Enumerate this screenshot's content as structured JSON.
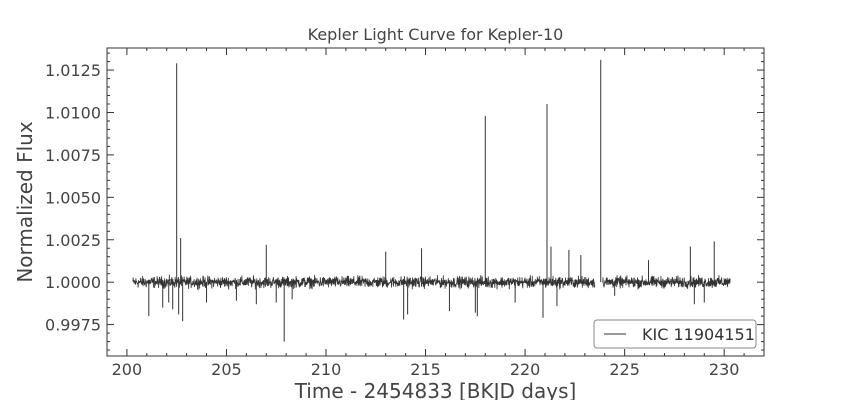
{
  "chart_data": {
    "type": "line",
    "title": "Kepler Light Curve for Kepler-10",
    "xlabel": "Time - 2454833 [BKJD days]",
    "ylabel": "Normalized Flux",
    "xlim": [
      199.0,
      232.0
    ],
    "ylim": [
      0.99565,
      1.0138
    ],
    "xticks": [
      {
        "value": 200,
        "label": "200"
      },
      {
        "value": 205,
        "label": "205"
      },
      {
        "value": 210,
        "label": "210"
      },
      {
        "value": 215,
        "label": "215"
      },
      {
        "value": 220,
        "label": "220"
      },
      {
        "value": 225,
        "label": "225"
      },
      {
        "value": 230,
        "label": "230"
      }
    ],
    "yticks": [
      {
        "value": 0.9975,
        "label": "0.9975"
      },
      {
        "value": 1.0,
        "label": "1.0000"
      },
      {
        "value": 1.0025,
        "label": "1.0025"
      },
      {
        "value": 1.005,
        "label": "1.0050"
      },
      {
        "value": 1.0075,
        "label": "1.0075"
      },
      {
        "value": 1.01,
        "label": "1.0100"
      },
      {
        "value": 1.0125,
        "label": "1.0125"
      }
    ],
    "grid": false,
    "legend_position": "lower-right",
    "series": [
      {
        "name": "KIC 11904151",
        "color": "#333333",
        "segments": [
          {
            "x_start": 200.3,
            "x_end": 223.5
          },
          {
            "x_start": 223.9,
            "x_end": 230.3
          }
        ],
        "baseline": 1.0,
        "noise_halfwidth": 0.0005,
        "spikes": [
          {
            "x": 201.1,
            "y": 0.998
          },
          {
            "x": 201.8,
            "y": 0.9985
          },
          {
            "x": 202.1,
            "y": 0.9988
          },
          {
            "x": 202.3,
            "y": 0.9984
          },
          {
            "x": 202.5,
            "y": 1.0129
          },
          {
            "x": 202.6,
            "y": 0.9981
          },
          {
            "x": 202.7,
            "y": 1.0026
          },
          {
            "x": 202.8,
            "y": 0.9977
          },
          {
            "x": 204.0,
            "y": 0.9988
          },
          {
            "x": 205.5,
            "y": 0.9989
          },
          {
            "x": 206.5,
            "y": 0.9987
          },
          {
            "x": 207.0,
            "y": 1.0022
          },
          {
            "x": 207.5,
            "y": 0.9988
          },
          {
            "x": 207.9,
            "y": 0.9965
          },
          {
            "x": 208.3,
            "y": 0.999
          },
          {
            "x": 213.0,
            "y": 1.0018
          },
          {
            "x": 213.9,
            "y": 0.9978
          },
          {
            "x": 214.1,
            "y": 0.9981
          },
          {
            "x": 214.8,
            "y": 1.002
          },
          {
            "x": 216.2,
            "y": 0.9983
          },
          {
            "x": 217.5,
            "y": 0.9982
          },
          {
            "x": 217.6,
            "y": 0.998
          },
          {
            "x": 218.0,
            "y": 1.0098
          },
          {
            "x": 219.5,
            "y": 0.9988
          },
          {
            "x": 220.9,
            "y": 0.9979
          },
          {
            "x": 221.1,
            "y": 1.0105
          },
          {
            "x": 221.3,
            "y": 1.0021
          },
          {
            "x": 221.6,
            "y": 0.9986
          },
          {
            "x": 222.2,
            "y": 1.0019
          },
          {
            "x": 222.8,
            "y": 1.0016
          },
          {
            "x": 223.8,
            "y": 1.0131
          },
          {
            "x": 224.5,
            "y": 0.9992
          },
          {
            "x": 226.2,
            "y": 1.0013
          },
          {
            "x": 228.3,
            "y": 1.0021
          },
          {
            "x": 228.5,
            "y": 0.9987
          },
          {
            "x": 229.0,
            "y": 0.9988
          },
          {
            "x": 229.5,
            "y": 1.0024
          }
        ]
      }
    ]
  }
}
